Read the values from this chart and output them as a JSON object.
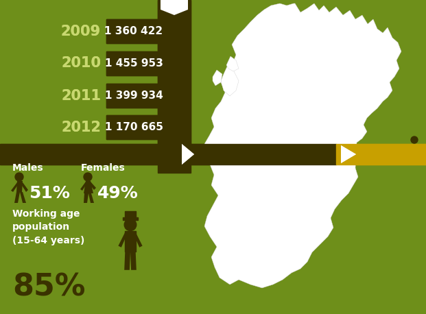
{
  "bg_color": "#6e8f1a",
  "dark_bar_color": "#3a3200",
  "years": [
    "2009",
    "2010",
    "2011",
    "2012"
  ],
  "values": [
    "1 360 422",
    "1 455 953",
    "1 399 934",
    "1 170 665"
  ],
  "year_color": "#c8d870",
  "arrow_dark": "#3a3200",
  "arrow_yellow": "#c8a000",
  "silhouette_color": "#3a3200",
  "male_pct": "51%",
  "female_pct": "49%",
  "working_age_pct": "85%",
  "males_label": "Males",
  "females_label": "Females",
  "working_age_label": "Working age\npopulation\n(15-64 years)"
}
